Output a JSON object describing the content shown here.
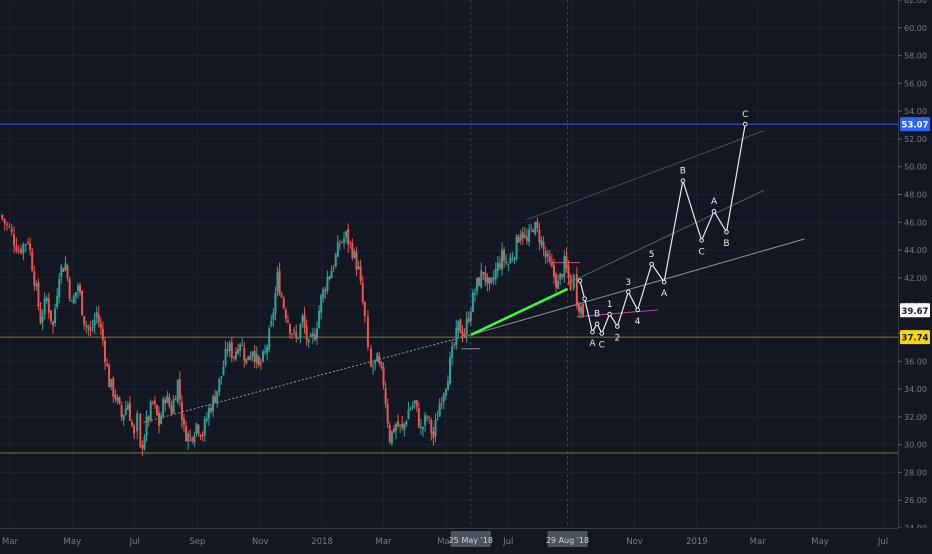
{
  "chart_data": {
    "type": "candlestick",
    "title": "",
    "xlabel": "",
    "ylabel": "",
    "ylim": [
      24,
      62
    ],
    "grid": true,
    "y_ticks": [
      "24.00",
      "26.00",
      "28.00",
      "30.00",
      "32.00",
      "34.00",
      "36.00",
      "38.00",
      "40.00",
      "42.00",
      "44.00",
      "46.00",
      "48.00",
      "50.00",
      "52.00",
      "54.00",
      "56.00",
      "58.00",
      "60.00",
      "62.00"
    ],
    "y_tick_values": [
      24,
      26,
      28,
      30,
      32,
      34,
      36,
      38,
      40,
      42,
      44,
      46,
      48,
      50,
      52,
      54,
      56,
      58,
      60,
      62
    ],
    "x_ticks": [
      {
        "label": "Mar",
        "t": 0.02
      },
      {
        "label": "May",
        "t": 2.02
      },
      {
        "label": "Jul",
        "t": 4.02
      },
      {
        "label": "Sep",
        "t": 6.03
      },
      {
        "label": "Nov",
        "t": 8.05
      },
      {
        "label": "2018",
        "t": 10.03
      },
      {
        "label": "Mar",
        "t": 12.0
      },
      {
        "label": "May",
        "t": 14.0
      },
      {
        "label": "Jul",
        "t": 16.0
      },
      {
        "label": "Sep",
        "t": 18.05
      },
      {
        "label": "Nov",
        "t": 20.05
      },
      {
        "label": "2019",
        "t": 22.05
      },
      {
        "label": "Mar",
        "t": 24.0
      },
      {
        "label": "May",
        "t": 26.0
      },
      {
        "label": "Jul",
        "t": 28.02
      }
    ],
    "x_range": [
      -0.3,
      28.5
    ],
    "crosshair_labels": [
      {
        "label": "25 May '18",
        "t": 14.8
      },
      {
        "label": "29 Aug '18",
        "t": 17.9
      }
    ],
    "price_labels": [
      {
        "label": "53.07",
        "value": 53.07,
        "color": "#2962ff"
      },
      {
        "label": "39.67",
        "value": 39.67,
        "color": "#ffffff"
      },
      {
        "label": "37.74",
        "value": 37.74,
        "color": "#f5d90a"
      }
    ],
    "horizontal_lines": [
      {
        "value": 53.07,
        "color": "#2962ff"
      },
      {
        "value": 37.74,
        "color": "#7a7a3a"
      },
      {
        "value": 29.4,
        "color": "#7a7a3a"
      }
    ],
    "price_path": [
      [
        -0.3,
        46.5
      ],
      [
        0.0,
        45.5
      ],
      [
        0.3,
        44.0
      ],
      [
        0.6,
        44.8
      ],
      [
        0.8,
        42.0
      ],
      [
        1.0,
        39.0
      ],
      [
        1.2,
        40.5
      ],
      [
        1.4,
        38.5
      ],
      [
        1.6,
        42.5
      ],
      [
        1.8,
        43.0
      ],
      [
        2.0,
        40.0
      ],
      [
        2.2,
        41.5
      ],
      [
        2.4,
        39.0
      ],
      [
        2.6,
        38.0
      ],
      [
        2.8,
        39.5
      ],
      [
        3.0,
        37.5
      ],
      [
        3.2,
        34.5
      ],
      [
        3.4,
        33.5
      ],
      [
        3.6,
        32.0
      ],
      [
        3.8,
        33.0
      ],
      [
        4.0,
        30.5
      ],
      [
        4.1,
        31.8
      ],
      [
        4.2,
        29.5
      ],
      [
        4.4,
        31.5
      ],
      [
        4.6,
        33.0
      ],
      [
        4.8,
        31.5
      ],
      [
        5.0,
        33.5
      ],
      [
        5.2,
        32.5
      ],
      [
        5.4,
        34.5
      ],
      [
        5.6,
        31.0
      ],
      [
        5.8,
        30.5
      ],
      [
        6.0,
        31.5
      ],
      [
        6.2,
        30.8
      ],
      [
        6.4,
        32.5
      ],
      [
        6.6,
        33.5
      ],
      [
        6.8,
        35.0
      ],
      [
        7.0,
        37.0
      ],
      [
        7.2,
        36.5
      ],
      [
        7.4,
        37.5
      ],
      [
        7.6,
        36.0
      ],
      [
        7.8,
        37.0
      ],
      [
        8.0,
        35.5
      ],
      [
        8.2,
        36.5
      ],
      [
        8.4,
        38.5
      ],
      [
        8.6,
        42.0
      ],
      [
        8.8,
        40.0
      ],
      [
        9.0,
        38.5
      ],
      [
        9.2,
        37.5
      ],
      [
        9.4,
        39.0
      ],
      [
        9.6,
        37.0
      ],
      [
        9.8,
        38.0
      ],
      [
        10.0,
        40.5
      ],
      [
        10.2,
        42.0
      ],
      [
        10.4,
        43.0
      ],
      [
        10.6,
        44.5
      ],
      [
        10.8,
        45.0
      ],
      [
        11.0,
        44.0
      ],
      [
        11.2,
        42.5
      ],
      [
        11.4,
        39.0
      ],
      [
        11.5,
        36.5
      ],
      [
        11.6,
        35.5
      ],
      [
        11.8,
        36.0
      ],
      [
        12.0,
        34.5
      ],
      [
        12.2,
        30.5
      ],
      [
        12.4,
        31.5
      ],
      [
        12.6,
        31.0
      ],
      [
        12.8,
        32.5
      ],
      [
        13.0,
        33.0
      ],
      [
        13.2,
        31.0
      ],
      [
        13.4,
        32.0
      ],
      [
        13.6,
        30.5
      ],
      [
        13.8,
        33.0
      ],
      [
        14.0,
        34.5
      ],
      [
        14.2,
        36.5
      ],
      [
        14.4,
        38.5
      ],
      [
        14.6,
        38.0
      ],
      [
        14.8,
        40.0
      ],
      [
        15.0,
        41.5
      ],
      [
        15.2,
        42.5
      ],
      [
        15.4,
        41.0
      ],
      [
        15.6,
        42.5
      ],
      [
        15.8,
        43.5
      ],
      [
        16.0,
        43.0
      ],
      [
        16.2,
        44.0
      ],
      [
        16.4,
        45.5
      ],
      [
        16.6,
        44.5
      ],
      [
        16.8,
        45.8
      ],
      [
        17.0,
        45.0
      ],
      [
        17.2,
        43.5
      ],
      [
        17.4,
        42.5
      ],
      [
        17.6,
        41.5
      ],
      [
        17.8,
        43.0
      ],
      [
        18.0,
        41.5
      ],
      [
        18.1,
        42.0
      ],
      [
        18.2,
        40.5
      ],
      [
        18.4,
        39.5
      ]
    ],
    "series": [
      {
        "name": "",
        "type": "green_segment",
        "points": [
          [
            14.8,
            37.9
          ],
          [
            17.9,
            41.2
          ]
        ]
      },
      {
        "name": "",
        "type": "wave_projection",
        "points": [
          {
            "t": 18.3,
            "v": 41.8,
            "label": ""
          },
          {
            "t": 18.45,
            "v": 40.5,
            "label": ""
          },
          {
            "t": 18.7,
            "v": 38.1,
            "label": "A"
          },
          {
            "t": 18.85,
            "v": 38.7,
            "label": "B"
          },
          {
            "t": 19.0,
            "v": 38.0,
            "label": "C"
          },
          {
            "t": 19.25,
            "v": 39.4,
            "label": "1"
          },
          {
            "t": 19.5,
            "v": 38.5,
            "label": "2"
          },
          {
            "t": 19.85,
            "v": 41.0,
            "label": "3"
          },
          {
            "t": 20.15,
            "v": 39.7,
            "label": "4"
          },
          {
            "t": 20.6,
            "v": 43.0,
            "label": "5"
          },
          {
            "t": 21.0,
            "v": 41.7,
            "label": "A"
          },
          {
            "t": 21.6,
            "v": 49.0,
            "label": "B"
          },
          {
            "t": 22.2,
            "v": 44.7,
            "label": "C"
          },
          {
            "t": 22.6,
            "v": 46.8,
            "label": "A"
          },
          {
            "t": 23.0,
            "v": 45.3,
            "label": "B"
          },
          {
            "t": 23.6,
            "v": 53.07,
            "label": "C"
          }
        ]
      }
    ]
  }
}
